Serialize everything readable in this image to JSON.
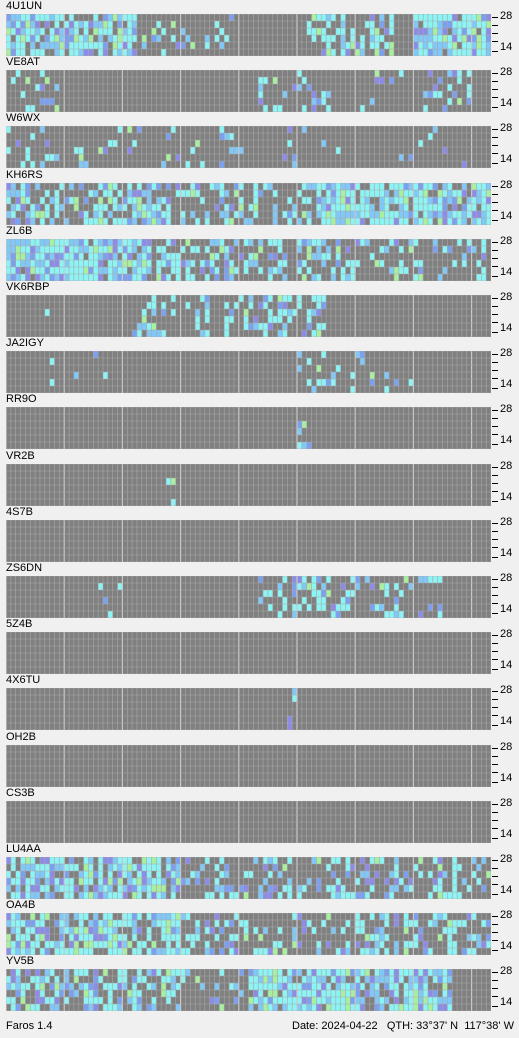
{
  "app": {
    "version_label": "Faros 1.4"
  },
  "status": {
    "date_label": "Date:",
    "date": "2024-04-22",
    "qth_label": "QTH:",
    "qth": "33°37' N  117°38' W"
  },
  "axis": {
    "top_label": "28",
    "bottom_label": "14"
  },
  "colors": {
    "background": "#f0f0f0",
    "cell_off": "#808080",
    "cell_gridline": "#a8a8a8",
    "cyan": "#8cf4f4",
    "light_blue": "#80c8f8",
    "blue": "#7ca0f0",
    "green": "#a8f0a0",
    "purple": "#8c8ce8"
  },
  "beacons": [
    {
      "callsign": "4U1UN",
      "activity": 0.55,
      "regions": [
        [
          28,
          47,
          0.25
        ],
        [
          62,
          80,
          0.55
        ],
        [
          84,
          100,
          0.95
        ],
        [
          0,
          27,
          0.85
        ]
      ]
    },
    {
      "callsign": "VE8AT",
      "activity": 0.2,
      "regions": [
        [
          0,
          12,
          0.25
        ],
        [
          52,
          67,
          0.3
        ],
        [
          70,
          82,
          0.15
        ],
        [
          86,
          96,
          0.35
        ]
      ]
    },
    {
      "callsign": "W6WX",
      "activity": 0.15,
      "regions": [
        [
          0,
          30,
          0.2
        ],
        [
          30,
          50,
          0.1
        ],
        [
          50,
          70,
          0.08
        ],
        [
          80,
          96,
          0.1
        ]
      ]
    },
    {
      "callsign": "KH6RS",
      "activity": 0.5,
      "regions": [
        [
          0,
          38,
          0.55
        ],
        [
          38,
          50,
          0.4
        ],
        [
          50,
          64,
          0.3
        ],
        [
          64,
          100,
          0.85
        ]
      ]
    },
    {
      "callsign": "ZL6B",
      "activity": 0.6,
      "regions": [
        [
          0,
          30,
          0.9
        ],
        [
          30,
          72,
          0.45
        ],
        [
          72,
          100,
          0.25
        ]
      ]
    },
    {
      "callsign": "VK6RBP",
      "activity": 0.25,
      "regions": [
        [
          8,
          10,
          0.2
        ],
        [
          26,
          42,
          0.35
        ],
        [
          45,
          66,
          0.4
        ]
      ]
    },
    {
      "callsign": "JA2IGY",
      "activity": 0.1,
      "regions": [
        [
          8,
          22,
          0.12
        ],
        [
          60,
          84,
          0.1
        ]
      ]
    },
    {
      "callsign": "RR9O",
      "activity": 0.02,
      "regions": [
        [
          60,
          63,
          0.25
        ]
      ]
    },
    {
      "callsign": "VR2B",
      "activity": 0.02,
      "regions": [
        [
          33,
          35,
          0.25
        ]
      ]
    },
    {
      "callsign": "4S7B",
      "activity": 0.0,
      "regions": []
    },
    {
      "callsign": "ZS6DN",
      "activity": 0.15,
      "regions": [
        [
          18,
          24,
          0.1
        ],
        [
          52,
          72,
          0.4
        ],
        [
          72,
          90,
          0.3
        ]
      ]
    },
    {
      "callsign": "5Z4B",
      "activity": 0.0,
      "regions": []
    },
    {
      "callsign": "4X6TU",
      "activity": 0.02,
      "regions": [
        [
          58,
          60,
          0.4
        ]
      ]
    },
    {
      "callsign": "OH2B",
      "activity": 0.0,
      "regions": []
    },
    {
      "callsign": "CS3B",
      "activity": 0.0,
      "regions": []
    },
    {
      "callsign": "LU4AA",
      "activity": 0.55,
      "regions": [
        [
          0,
          36,
          0.8
        ],
        [
          36,
          60,
          0.35
        ],
        [
          60,
          100,
          0.4
        ]
      ]
    },
    {
      "callsign": "OA4B",
      "activity": 0.5,
      "regions": [
        [
          0,
          40,
          0.7
        ],
        [
          40,
          72,
          0.3
        ],
        [
          72,
          100,
          0.5
        ]
      ]
    },
    {
      "callsign": "YV5B",
      "activity": 0.55,
      "regions": [
        [
          0,
          36,
          0.55
        ],
        [
          36,
          50,
          0.2
        ],
        [
          50,
          92,
          0.85
        ]
      ]
    }
  ]
}
